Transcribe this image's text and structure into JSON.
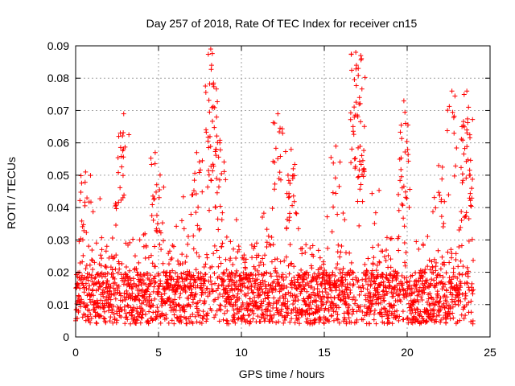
{
  "chart_data": {
    "type": "scatter",
    "title": "Day 257 of 2018, Rate Of TEC Index for receiver cn15",
    "xlabel": "GPS time / hours",
    "ylabel": "ROTI / TECUs",
    "xlim": [
      0,
      25
    ],
    "ylim": [
      0,
      0.09
    ],
    "x_ticks": [
      0,
      5,
      10,
      15,
      20,
      25
    ],
    "x_tick_labels": [
      "0",
      "5",
      "10",
      "15",
      "20",
      "25"
    ],
    "y_ticks": [
      0,
      0.01,
      0.02,
      0.03,
      0.04,
      0.05,
      0.06,
      0.07,
      0.08,
      0.09
    ],
    "y_tick_labels": [
      "0",
      "0.01",
      "0.02",
      "0.03",
      "0.04",
      "0.05",
      "0.06",
      "0.07",
      "0.08",
      "0.09"
    ],
    "grid": true,
    "marker": "+",
    "color": "#ff0000",
    "series": [
      {
        "name": "ROTI",
        "x_range": [
          0,
          24
        ],
        "baseline_range": [
          0.004,
          0.02
        ],
        "notable_spikes": [
          {
            "x": 0.6,
            "y": 0.051
          },
          {
            "x": 2.6,
            "y": 0.062
          },
          {
            "x": 2.9,
            "y": 0.069
          },
          {
            "x": 4.8,
            "y": 0.057
          },
          {
            "x": 7.3,
            "y": 0.057
          },
          {
            "x": 8.15,
            "y": 0.089
          },
          {
            "x": 8.2,
            "y": 0.084
          },
          {
            "x": 8.3,
            "y": 0.078
          },
          {
            "x": 8.5,
            "y": 0.068
          },
          {
            "x": 8.7,
            "y": 0.06
          },
          {
            "x": 12.2,
            "y": 0.069
          },
          {
            "x": 13.0,
            "y": 0.058
          },
          {
            "x": 15.7,
            "y": 0.059
          },
          {
            "x": 16.9,
            "y": 0.088
          },
          {
            "x": 17.05,
            "y": 0.083
          },
          {
            "x": 17.2,
            "y": 0.087
          },
          {
            "x": 17.1,
            "y": 0.072
          },
          {
            "x": 19.8,
            "y": 0.073
          },
          {
            "x": 19.9,
            "y": 0.066
          },
          {
            "x": 21.9,
            "y": 0.053
          },
          {
            "x": 22.7,
            "y": 0.076
          },
          {
            "x": 23.6,
            "y": 0.076
          },
          {
            "x": 23.7,
            "y": 0.071
          },
          {
            "x": 23.6,
            "y": 0.064
          }
        ]
      }
    ]
  }
}
